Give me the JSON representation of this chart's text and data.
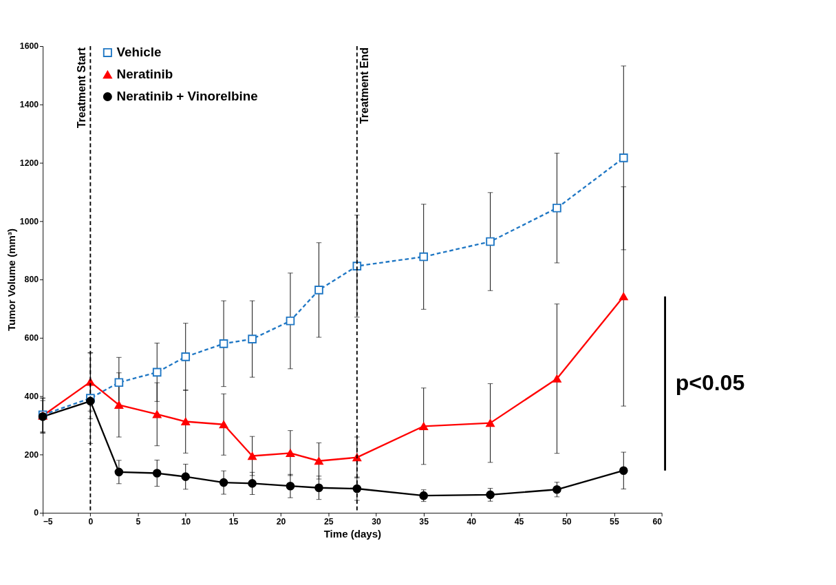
{
  "chart_data": {
    "type": "line",
    "xlabel": "Time (days)",
    "ylabel": "Tumor Volume (mm³)",
    "x": [
      -5,
      0,
      3,
      7,
      10,
      14,
      17,
      21,
      24,
      28,
      35,
      42,
      49,
      56
    ],
    "series": [
      {
        "name": "Vehicle",
        "color": "#1f77c4",
        "marker": "square",
        "line_style": "dashed",
        "values": [
          336,
          393,
          447,
          482,
          535,
          580,
          596,
          658,
          764,
          846,
          878,
          930,
          1045,
          1217
        ],
        "errors": [
          58,
          155,
          86,
          100,
          115,
          147,
          131,
          164,
          162,
          175,
          180,
          168,
          188,
          315
        ]
      },
      {
        "name": "Neratinib",
        "color": "#ff0000",
        "marker": "triangle",
        "line_style": "solid",
        "values": [
          333,
          449,
          370,
          338,
          313,
          303,
          195,
          205,
          178,
          190,
          297,
          308,
          460,
          742
        ],
        "errors": [
          60,
          100,
          110,
          108,
          108,
          105,
          67,
          77,
          62,
          70,
          131,
          135,
          256,
          376
        ]
      },
      {
        "name": "Neratinib + Vinorelbine",
        "color": "#000000",
        "marker": "circle",
        "line_style": "solid",
        "values": [
          330,
          383,
          140,
          136,
          124,
          104,
          101,
          92,
          86,
          83,
          59,
          62,
          80,
          145
        ],
        "errors": [
          55,
          60,
          40,
          45,
          43,
          40,
          38,
          40,
          40,
          40,
          20,
          22,
          25,
          63
        ]
      }
    ],
    "xlim": [
      -5,
      60
    ],
    "xticks": [
      -5,
      0,
      5,
      10,
      15,
      20,
      25,
      30,
      35,
      40,
      45,
      50,
      55,
      60
    ],
    "ylim": [
      0,
      1600
    ],
    "yticks": [
      0,
      200,
      400,
      600,
      800,
      1000,
      1200,
      1400,
      1600
    ],
    "ref_lines": [
      {
        "axis": "x",
        "value": 0,
        "label": "Treatment Start",
        "color": "#000000",
        "line_style": "dashed"
      },
      {
        "axis": "x",
        "value": 28,
        "label": "Treatment End",
        "color": "#000000",
        "line_style": "dashed"
      }
    ],
    "annotations": [
      "p<0.05"
    ],
    "legend": "top left",
    "grid": false
  }
}
